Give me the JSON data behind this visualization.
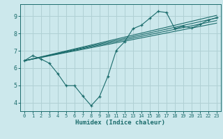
{
  "xlabel": "Humidex (Indice chaleur)",
  "bg_color": "#cce8ec",
  "grid_color": "#b0d0d4",
  "line_color": "#1a6b6b",
  "xlim": [
    -0.5,
    23.5
  ],
  "ylim": [
    3.5,
    9.7
  ],
  "xticks": [
    0,
    1,
    2,
    3,
    4,
    5,
    6,
    7,
    8,
    9,
    10,
    11,
    12,
    13,
    14,
    15,
    16,
    17,
    18,
    19,
    20,
    21,
    22,
    23
  ],
  "yticks": [
    4,
    5,
    6,
    7,
    8,
    9
  ],
  "zigzag_x": [
    0,
    1,
    2,
    3,
    4,
    5,
    6,
    7,
    8,
    9,
    10,
    11,
    12,
    13,
    14,
    15,
    16,
    17,
    18,
    19,
    20,
    21,
    22,
    23
  ],
  "zigzag_y": [
    6.42,
    6.72,
    6.52,
    6.28,
    5.68,
    4.98,
    4.98,
    4.38,
    3.82,
    4.35,
    5.52,
    7.02,
    7.52,
    8.28,
    8.48,
    8.88,
    9.28,
    9.22,
    8.28,
    8.42,
    8.32,
    8.52,
    8.78,
    8.92
  ],
  "lines": [
    {
      "x": [
        0,
        23
      ],
      "y": [
        6.42,
        9.05
      ]
    },
    {
      "x": [
        0,
        23
      ],
      "y": [
        6.42,
        8.9
      ]
    },
    {
      "x": [
        0,
        23
      ],
      "y": [
        6.42,
        8.75
      ]
    },
    {
      "x": [
        0,
        23
      ],
      "y": [
        6.42,
        8.6
      ]
    }
  ]
}
